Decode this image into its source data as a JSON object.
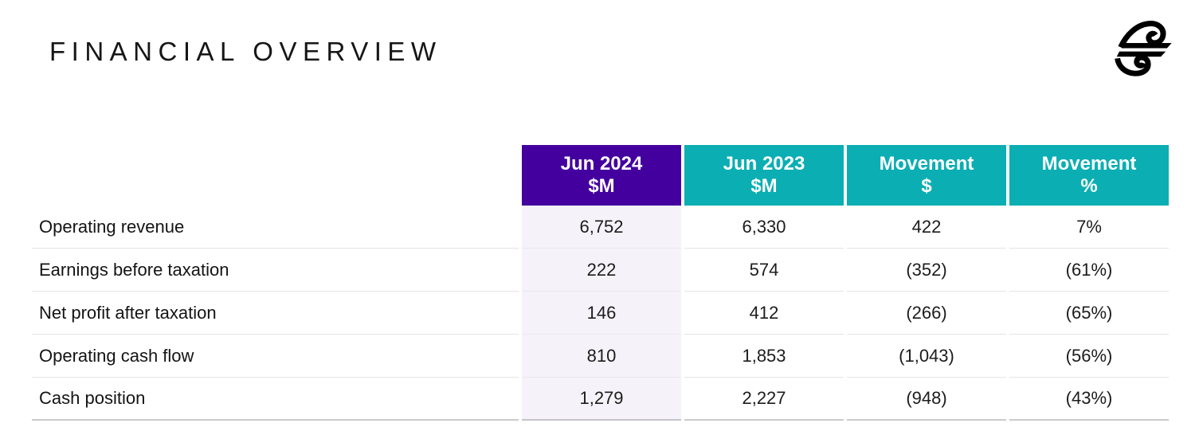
{
  "page": {
    "title": "FINANCIAL OVERVIEW"
  },
  "logo": {
    "icon": "koru-logo",
    "color": "#000000"
  },
  "colors": {
    "purple": "#44009E",
    "teal": "#0BAEB2",
    "shaded_column": "#F5F3F9"
  },
  "table": {
    "columns": [
      {
        "line1": "Jun 2024",
        "line2": "$M",
        "style": "purple"
      },
      {
        "line1": "Jun 2023",
        "line2": "$M",
        "style": "teal"
      },
      {
        "line1": "Movement",
        "line2": "$",
        "style": "teal"
      },
      {
        "line1": "Movement",
        "line2": "%",
        "style": "teal"
      }
    ],
    "rows": [
      {
        "label": "Operating revenue",
        "values": [
          "6,752",
          "6,330",
          "422",
          "7%"
        ]
      },
      {
        "label": "Earnings before taxation",
        "values": [
          "222",
          "574",
          "(352)",
          "(61%)"
        ]
      },
      {
        "label": "Net profit after taxation",
        "values": [
          "146",
          "412",
          "(266)",
          "(65%)"
        ]
      },
      {
        "label": "Operating cash flow",
        "values": [
          "810",
          "1,853",
          "(1,043)",
          "(56%)"
        ]
      },
      {
        "label": "Cash position",
        "values": [
          "1,279",
          "2,227",
          "(948)",
          "(43%)"
        ]
      }
    ]
  }
}
